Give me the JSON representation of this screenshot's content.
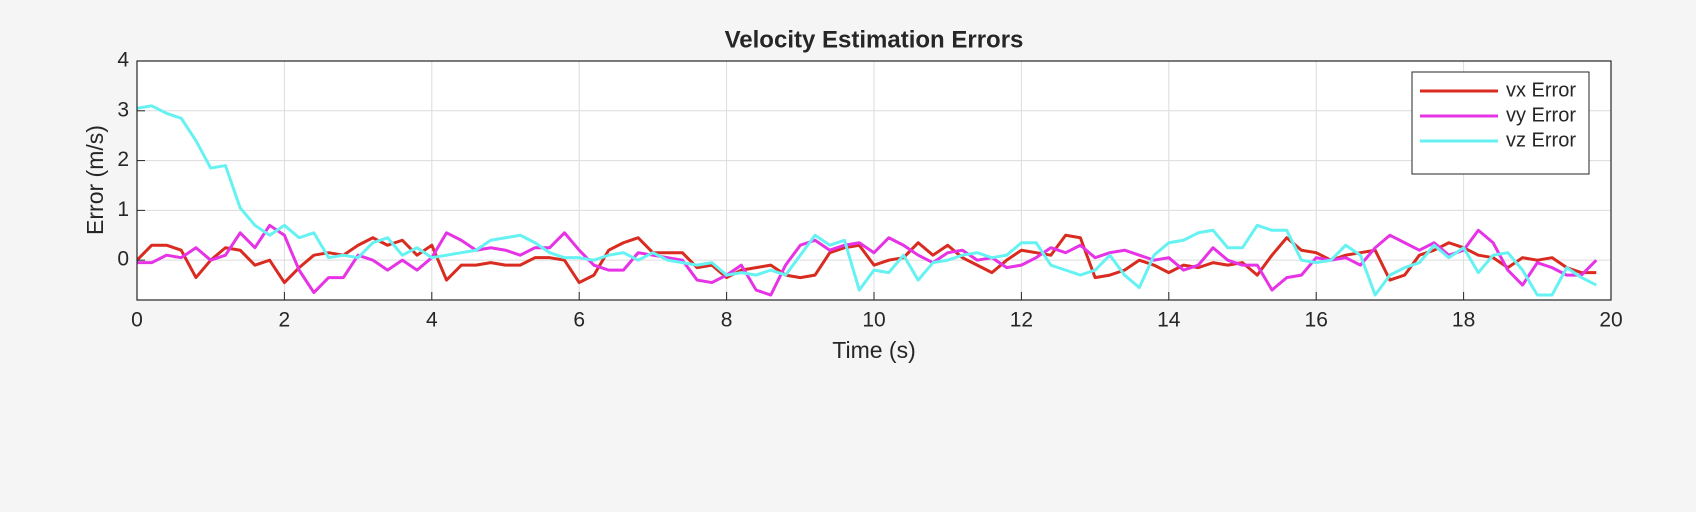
{
  "chart_data": {
    "type": "line",
    "title": "Velocity Estimation Errors",
    "xlabel": "Time (s)",
    "ylabel": "Error (m/s)",
    "x": [
      0,
      0.2,
      0.4,
      0.6,
      0.8,
      1,
      1.2,
      1.4,
      1.6,
      1.8,
      2,
      2.2,
      2.4,
      2.6,
      2.8,
      3,
      3.2,
      3.4,
      3.6,
      3.8,
      4,
      4.2,
      4.4,
      4.6,
      4.8,
      5,
      5.2,
      5.4,
      5.6,
      5.8,
      6,
      6.2,
      6.4,
      6.6,
      6.8,
      7,
      7.2,
      7.4,
      7.6,
      7.8,
      8,
      8.2,
      8.4,
      8.6,
      8.8,
      9,
      9.2,
      9.4,
      9.6,
      9.8,
      10,
      10.2,
      10.4,
      10.6,
      10.8,
      11,
      11.2,
      11.4,
      11.6,
      11.8,
      12,
      12.2,
      12.4,
      12.6,
      12.8,
      13,
      13.2,
      13.4,
      13.6,
      13.8,
      14,
      14.2,
      14.4,
      14.6,
      14.8,
      15,
      15.2,
      15.4,
      15.6,
      15.8,
      16,
      16.2,
      16.4,
      16.6,
      16.8,
      17,
      17.2,
      17.4,
      17.6,
      17.8,
      18,
      18.2,
      18.4,
      18.6,
      18.8,
      19,
      19.2,
      19.4,
      19.6,
      19.8
    ],
    "series": [
      {
        "name": "vx Error",
        "color": "#d92b1f",
        "values": [
          0,
          0.3,
          0.3,
          0.2,
          -0.35,
          0,
          0.25,
          0.2,
          -0.1,
          0,
          -0.45,
          -0.15,
          0.1,
          0.15,
          0.1,
          0.3,
          0.45,
          0.3,
          0.4,
          0.1,
          0.3,
          -0.4,
          -0.1,
          -0.1,
          -0.05,
          -0.1,
          -0.1,
          0.05,
          0.05,
          0,
          -0.45,
          -0.3,
          0.2,
          0.35,
          0.45,
          0.15,
          0.15,
          0.15,
          -0.15,
          -0.1,
          -0.35,
          -0.2,
          -0.15,
          -0.1,
          -0.3,
          -0.35,
          -0.3,
          0.15,
          0.25,
          0.3,
          -0.1,
          0,
          0.05,
          0.35,
          0.1,
          0.3,
          0.05,
          -0.1,
          -0.25,
          0,
          0.2,
          0.15,
          0.1,
          0.5,
          0.45,
          -0.35,
          -0.3,
          -0.2,
          0,
          -0.1,
          -0.25,
          -0.1,
          -0.15,
          -0.05,
          -0.1,
          -0.05,
          -0.3,
          0.1,
          0.45,
          0.2,
          0.15,
          0,
          0.1,
          0.15,
          0.2,
          -0.4,
          -0.3,
          0.1,
          0.2,
          0.35,
          0.25,
          0.1,
          0.05,
          -0.15,
          0.05,
          0,
          0.05,
          -0.15,
          -0.25,
          -0.25
        ]
      },
      {
        "name": "vy Error",
        "color": "#e633e6",
        "values": [
          -0.05,
          -0.05,
          0.1,
          0.05,
          0.25,
          0,
          0.1,
          0.55,
          0.25,
          0.7,
          0.5,
          -0.2,
          -0.65,
          -0.35,
          -0.35,
          0.1,
          0,
          -0.2,
          0,
          -0.2,
          0.05,
          0.55,
          0.4,
          0.2,
          0.25,
          0.2,
          0.1,
          0.25,
          0.25,
          0.55,
          0.2,
          -0.1,
          -0.2,
          -0.2,
          0.15,
          0.1,
          0.05,
          0,
          -0.4,
          -0.45,
          -0.3,
          -0.1,
          -0.6,
          -0.7,
          -0.1,
          0.3,
          0.4,
          0.2,
          0.3,
          0.35,
          0.15,
          0.45,
          0.3,
          0.1,
          -0.05,
          0.15,
          0.2,
          0,
          0.05,
          -0.15,
          -0.1,
          0.05,
          0.25,
          0.15,
          0.3,
          0.05,
          0.15,
          0.2,
          0.1,
          0,
          0.05,
          -0.2,
          -0.1,
          0.25,
          0,
          -0.1,
          -0.1,
          -0.6,
          -0.35,
          -0.3,
          0.05,
          0,
          0.05,
          -0.1,
          0.25,
          0.5,
          0.35,
          0.2,
          0.35,
          0.1,
          0.2,
          0.6,
          0.35,
          -0.2,
          -0.5,
          -0.05,
          -0.15,
          -0.3,
          -0.3,
          0
        ]
      },
      {
        "name": "vz Error",
        "color": "#66f2f2",
        "values": [
          3.05,
          3.1,
          2.95,
          2.85,
          2.4,
          1.85,
          1.9,
          1.05,
          0.7,
          0.5,
          0.7,
          0.45,
          0.55,
          0.05,
          0.1,
          0.05,
          0.35,
          0.45,
          0.1,
          0.25,
          0.05,
          0.1,
          0.15,
          0.2,
          0.4,
          0.45,
          0.5,
          0.35,
          0.15,
          0.05,
          0.05,
          0,
          0.1,
          0.15,
          0,
          0.15,
          0,
          -0.05,
          -0.1,
          -0.05,
          -0.3,
          -0.25,
          -0.3,
          -0.2,
          -0.3,
          0.1,
          0.5,
          0.3,
          0.4,
          -0.6,
          -0.2,
          -0.25,
          0.1,
          -0.4,
          -0.05,
          0,
          0.1,
          0.15,
          0.05,
          0.1,
          0.35,
          0.35,
          -0.1,
          -0.2,
          -0.3,
          -0.2,
          0.1,
          -0.3,
          -0.55,
          0.1,
          0.35,
          0.4,
          0.55,
          0.6,
          0.25,
          0.25,
          0.7,
          0.6,
          0.6,
          0,
          -0.05,
          0,
          0.3,
          0.1,
          -0.7,
          -0.3,
          -0.15,
          -0.05,
          0.3,
          0.05,
          0.25,
          -0.25,
          0.1,
          0.15,
          -0.2,
          -0.7,
          -0.7,
          -0.15,
          -0.35,
          -0.5
        ]
      }
    ],
    "xlim": [
      0,
      20
    ],
    "xticks": [
      0,
      2,
      4,
      6,
      8,
      10,
      12,
      14,
      16,
      18,
      20
    ],
    "ylim": [
      -0.8,
      4
    ],
    "yticks": [
      0,
      1,
      2,
      3,
      4
    ],
    "grid": true,
    "legend": "northeast"
  }
}
